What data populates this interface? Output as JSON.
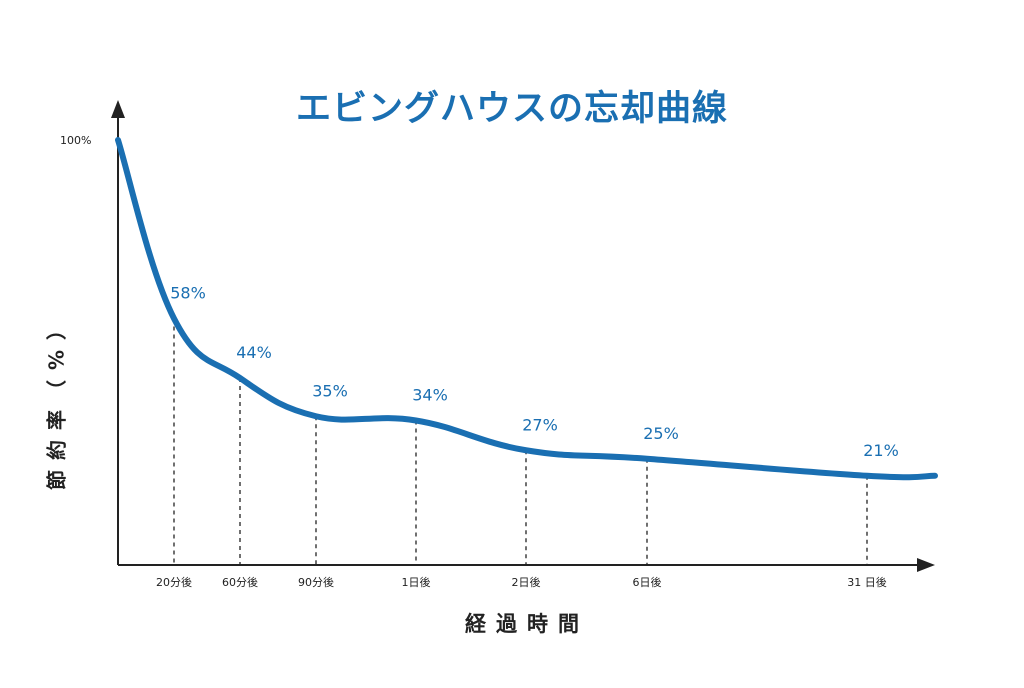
{
  "chart_data": {
    "type": "line",
    "title": "エビングハウスの忘却曲線",
    "xlabel": "経過時間",
    "ylabel": "節約率（%）",
    "ylim": [
      0,
      100
    ],
    "y_top_label": "100%",
    "color": "#1a6fb2",
    "start_point": {
      "x_label": "0",
      "y": 100
    },
    "categories": [
      "20分後",
      "60分後",
      "90分後",
      "1日後",
      "2日後",
      "6日後",
      "31 日後"
    ],
    "series": [
      {
        "values": [
          58,
          44,
          35,
          34,
          27,
          25,
          21
        ],
        "labels": [
          "58%",
          "44%",
          "35%",
          "34%",
          "27%",
          "25%",
          "21%"
        ]
      }
    ],
    "grid": false,
    "guides": "dashed vertical lines from each point to the x-axis"
  }
}
